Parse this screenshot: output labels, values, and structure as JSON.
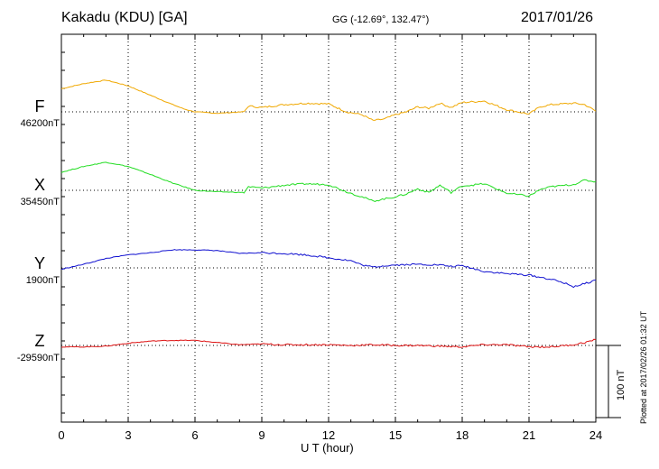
{
  "header": {
    "station": "Kakadu (KDU)  [GA]",
    "coordinates": "GG (-12.69°, 132.47°)",
    "date": "2017/01/26"
  },
  "footer": {
    "plotted": "Plotted at 2017/02/26 01:32 UT",
    "scale_label": "100 nT"
  },
  "colors": {
    "F": "#f0a800",
    "X": "#22dd22",
    "Y": "#1010d0",
    "Z": "#dd1111"
  },
  "chart_data": {
    "type": "line",
    "xlabel": "U T (hour)",
    "xlim": [
      0,
      24
    ],
    "x_ticks": [
      "0",
      "3",
      "6",
      "9",
      "12",
      "15",
      "18",
      "21",
      "24"
    ],
    "y_unit": "nT",
    "scale_bar_nT": 100,
    "grid": true,
    "series": [
      {
        "name": "F",
        "baseline_label": "46200nT",
        "baseline": 46200,
        "x": [
          0,
          1,
          2,
          3,
          4,
          5,
          5.5,
          6,
          7,
          8.2,
          8.4,
          9,
          10,
          11,
          12,
          12.8,
          13.5,
          14,
          14.5,
          15,
          15.5,
          16,
          16.5,
          17,
          17.5,
          18,
          19,
          20,
          21,
          21.5,
          22,
          23,
          23.5,
          24
        ],
        "values": [
          46232,
          46239,
          46244,
          46236,
          46223,
          46210,
          46204,
          46200,
          46198,
          46200,
          46208,
          46206,
          46210,
          46212,
          46211,
          46200,
          46196,
          46188,
          46190,
          46196,
          46200,
          46207,
          46205,
          46212,
          46206,
          46213,
          46215,
          46203,
          46197,
          46207,
          46210,
          46212,
          46210,
          46201
        ]
      },
      {
        "name": "X",
        "baseline_label": "35450nT",
        "baseline": 35450,
        "x": [
          0,
          1,
          2,
          3,
          4,
          5,
          5.5,
          6,
          7,
          8.2,
          8.4,
          9,
          10,
          11,
          12,
          12.8,
          13.5,
          14,
          14.5,
          15,
          15.5,
          16,
          16.5,
          17,
          17.5,
          18,
          19,
          20,
          21,
          21.5,
          22,
          23,
          23.5,
          24
        ],
        "values": [
          35475,
          35483,
          35489,
          35483,
          35472,
          35460,
          35455,
          35450,
          35448,
          35447,
          35455,
          35453,
          35457,
          35459,
          35458,
          35448,
          35441,
          35435,
          35438,
          35441,
          35445,
          35452,
          35447,
          35457,
          35447,
          35456,
          35459,
          35446,
          35442,
          35451,
          35455,
          35458,
          35464,
          35462
        ]
      },
      {
        "name": "Y",
        "baseline_label": "1900nT",
        "baseline": 1900,
        "x": [
          0,
          1,
          2,
          3,
          4,
          5,
          6,
          7,
          8,
          9,
          10,
          11,
          12,
          13,
          13.5,
          14,
          14.5,
          15,
          16,
          17,
          17.5,
          18,
          19,
          20,
          21,
          22,
          22.5,
          23,
          23.5,
          24
        ],
        "values": [
          1898,
          1905,
          1913,
          1918,
          1921,
          1925,
          1925,
          1924,
          1920,
          1921,
          1920,
          1918,
          1914,
          1910,
          1904,
          1901,
          1903,
          1904,
          1905,
          1904,
          1902,
          1903,
          1895,
          1892,
          1890,
          1884,
          1880,
          1874,
          1878,
          1883
        ]
      },
      {
        "name": "Z",
        "baseline_label": "-29590nT",
        "baseline": -29590,
        "x": [
          0,
          1,
          2,
          3,
          4,
          5,
          6,
          7,
          8,
          9,
          10,
          11,
          12,
          13,
          14,
          15,
          16,
          17,
          18,
          19,
          20,
          21,
          22,
          23,
          23.5,
          24
        ],
        "values": [
          -29592,
          -29592,
          -29591,
          -29587,
          -29584,
          -29583,
          -29583,
          -29586,
          -29589,
          -29588,
          -29589,
          -29589,
          -29589,
          -29590,
          -29589,
          -29590,
          -29590,
          -29591,
          -29592,
          -29589,
          -29589,
          -29592,
          -29592,
          -29589,
          -29586,
          -29582
        ]
      }
    ]
  }
}
